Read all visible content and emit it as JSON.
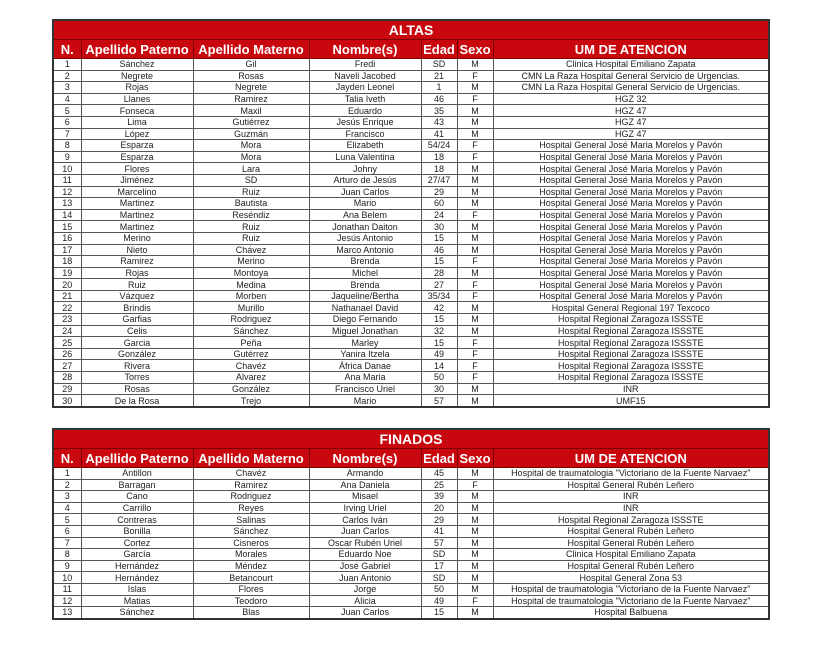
{
  "colors": {
    "header_bg": "#c8070e",
    "header_text": "#ffffff"
  },
  "headers": [
    "N.",
    "Apellido Paterno",
    "Apellido Materno",
    "Nombre(s)",
    "Edad",
    "Sexo",
    "UM DE ATENCION"
  ],
  "altas": {
    "title": "ALTAS",
    "rows": [
      [
        "1",
        "Sánchez",
        "Gil",
        "Fredi",
        "SD",
        "M",
        "Clinica Hospital Emiliano Zapata"
      ],
      [
        "2",
        "Negrete",
        "Rosas",
        "Naveli Jacobed",
        "21",
        "F",
        "CMN La Raza Hospital General Servicio de Urgencias."
      ],
      [
        "3",
        "Rojas",
        "Negrete",
        "Jayden Leonel",
        "1",
        "M",
        "CMN La Raza Hospital General Servicio de Urgencias."
      ],
      [
        "4",
        "Llanes",
        "Ramirez",
        "Talia Iveth",
        "46",
        "F",
        "HGZ 32"
      ],
      [
        "5",
        "Fonseca",
        "Maxil",
        "Eduardo",
        "35",
        "M",
        "HGZ 47"
      ],
      [
        "6",
        "Lima",
        "Gutiérrez",
        "Jesús Enrique",
        "43",
        "M",
        "HGZ 47"
      ],
      [
        "7",
        "López",
        "Guzmán",
        "Francisco",
        "41",
        "M",
        "HGZ 47"
      ],
      [
        "8",
        "Esparza",
        "Mora",
        "Elizabeth",
        "54/24",
        "F",
        "Hospital General José Maria Morelos y Pavón"
      ],
      [
        "9",
        "Esparza",
        "Mora",
        "Luna Valentina",
        "18",
        "F",
        "Hospital General José Maria Morelos y Pavón"
      ],
      [
        "10",
        "Flores",
        "Lara",
        "Johny",
        "18",
        "M",
        "Hospital General José Maria Morelos y Pavón"
      ],
      [
        "11",
        "Jiménez",
        "SD",
        "Arturo de Jesús",
        "27/47",
        "M",
        "Hospital General José Maria Morelos y Pavón"
      ],
      [
        "12",
        "Marcelino",
        "Ruiz",
        "Juan Carlos",
        "29",
        "M",
        "Hospital General José Maria Morelos y Pavón"
      ],
      [
        "13",
        "Martinez",
        "Bautista",
        "Mario",
        "60",
        "M",
        "Hospital General José Maria Morelos y Pavón"
      ],
      [
        "14",
        "Martinez",
        "Reséndiz",
        "Ana Belem",
        "24",
        "F",
        "Hospital General José Maria Morelos y Pavón"
      ],
      [
        "15",
        "Martinez",
        "Ruiz",
        "Jonathan Daiton",
        "30",
        "M",
        "Hospital General José Maria Morelos y Pavón"
      ],
      [
        "16",
        "Merino",
        "Ruiz",
        "Jesús Antonio",
        "15",
        "M",
        "Hospital General José Maria Morelos y Pavón"
      ],
      [
        "17",
        "Nieto",
        "Chávez",
        "Marco Antonio",
        "46",
        "M",
        "Hospital General José Maria Morelos y Pavón"
      ],
      [
        "18",
        "Ramirez",
        "Merino",
        "Brenda",
        "15",
        "F",
        "Hospital General José Maria Morelos y Pavón"
      ],
      [
        "19",
        "Rojas",
        "Montoya",
        "Michel",
        "28",
        "M",
        "Hospital General José Maria Morelos y Pavón"
      ],
      [
        "20",
        "Ruiz",
        "Medina",
        "Brenda",
        "27",
        "F",
        "Hospital General José Maria Morelos y Pavón"
      ],
      [
        "21",
        "Vázquez",
        "Morben",
        "Jaqueline/Bertha",
        "35/34",
        "F",
        "Hospital General José Maria Morelos y Pavón"
      ],
      [
        "22",
        "Brindis",
        "Murillo",
        "Nathanael David",
        "42",
        "M",
        "Hospital General Regional 197 Texcoco"
      ],
      [
        "23",
        "Garfias",
        "Rodriguez",
        "Diego Fernando",
        "15",
        "M",
        "Hospital Regional Zaragoza ISSSTE"
      ],
      [
        "24",
        "Celis",
        "Sánchez",
        "Miguel Jonathan",
        "32",
        "M",
        "Hospital Regional Zaragoza ISSSTE"
      ],
      [
        "25",
        "Garcia",
        "Peña",
        "Marley",
        "15",
        "F",
        "Hospital Regional Zaragoza ISSSTE"
      ],
      [
        "26",
        "González",
        "Gutérrez",
        "Yanira Itzela",
        "49",
        "F",
        "Hospital Regional Zaragoza ISSSTE"
      ],
      [
        "27",
        "Rivera",
        "Chavéz",
        "África Danae",
        "14",
        "F",
        "Hospital Regional Zaragoza ISSSTE"
      ],
      [
        "28",
        "Torres",
        "Alvarez",
        "Ana Maria",
        "50",
        "F",
        "Hospital Regional Zaragoza ISSSTE"
      ],
      [
        "29",
        "Rosas",
        "González",
        "Francisco Uriel",
        "30",
        "M",
        "INR"
      ],
      [
        "30",
        "De la Rosa",
        "Trejo",
        "Mario",
        "57",
        "M",
        "UMF15"
      ]
    ]
  },
  "finados": {
    "title": "FINADOS",
    "rows": [
      [
        "1",
        "Antillon",
        "Chavéz",
        "Armando",
        "45",
        "M",
        "Hospital de traumatologia \"Victoriano de la Fuente Narvaez\""
      ],
      [
        "2",
        "Barragan",
        "Ramirez",
        "Ana Daniela",
        "25",
        "F",
        "Hospital General Rubén Leñero"
      ],
      [
        "3",
        "Cano",
        "Rodriguez",
        "Misael",
        "39",
        "M",
        "INR"
      ],
      [
        "4",
        "Carrillo",
        "Reyes",
        "Irving Uriel",
        "20",
        "M",
        "INR"
      ],
      [
        "5",
        "Contreras",
        "Salinas",
        "Carlos Iván",
        "29",
        "M",
        "Hospital Regional Zaragoza ISSSTE"
      ],
      [
        "6",
        "Bonilla",
        "Sánchez",
        "Juan Carlos",
        "41",
        "M",
        "Hospital General Rubén Leñero"
      ],
      [
        "7",
        "Cortez",
        "Cisneros",
        "Oscar Rubén Uriel",
        "57",
        "M",
        "Hospital General Rubén Leñero"
      ],
      [
        "8",
        "García",
        "Morales",
        "Eduardo Noe",
        "SD",
        "M",
        "Clinica Hospital Emiliano Zapata"
      ],
      [
        "9",
        "Hernández",
        "Méndez",
        "José Gabriel",
        "17",
        "M",
        "Hospital General Rubén Leñero"
      ],
      [
        "10",
        "Hernández",
        "Betancourt",
        "Juan Antonio",
        "SD",
        "M",
        "Hospital General Zona 53"
      ],
      [
        "11",
        "Islas",
        "Flores",
        "Jorge",
        "50",
        "M",
        "Hospital de traumatologia \"Victoriano de la Fuente Narvaez\""
      ],
      [
        "12",
        "Matias",
        "Teodoro",
        "Alicia",
        "49",
        "F",
        "Hospital de traumatologia \"Victoriano de la Fuente Narvaez\""
      ],
      [
        "13",
        "Sánchez",
        "Blas",
        "Juan Carlos",
        "15",
        "M",
        "Hospital Balbuena"
      ]
    ]
  }
}
